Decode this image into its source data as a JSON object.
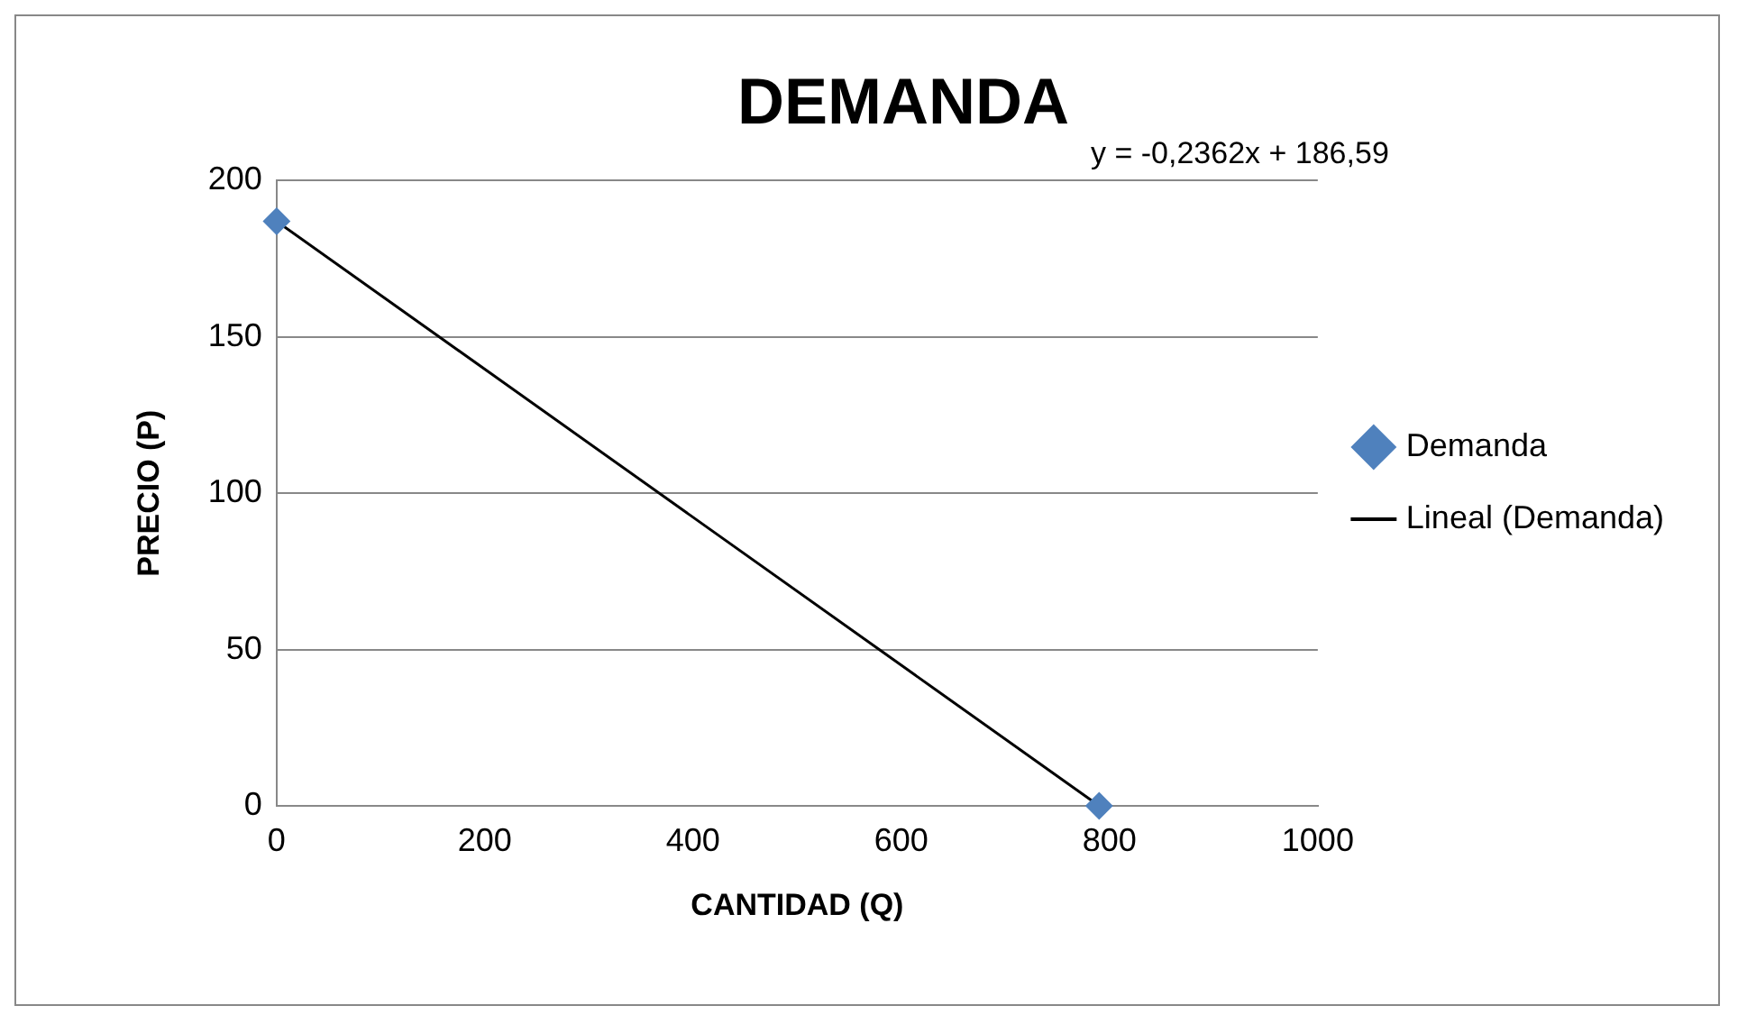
{
  "chart_data": {
    "type": "scatter",
    "title": "DEMANDA",
    "xlabel": "CANTIDAD (Q)",
    "ylabel": "PRECIO (P)",
    "annotations": [
      "y = -0,2362x + 186,59"
    ],
    "xlim": [
      0,
      1000
    ],
    "xticks": [
      0,
      200,
      400,
      600,
      800,
      1000
    ],
    "ylim": [
      0,
      200
    ],
    "yticks": [
      0,
      50,
      100,
      150,
      200
    ],
    "grid": "y",
    "legend": "right",
    "x": [
      0,
      790
    ],
    "series": [
      {
        "name": "Demanda",
        "color": "#4f81bd",
        "values": [
          187,
          0
        ],
        "marker": "diamond"
      },
      {
        "name": "Lineal (Demanda)",
        "type": "line",
        "color": "#000000",
        "values": [
          187,
          0
        ],
        "marker": "none",
        "line_style": "solid"
      }
    ]
  }
}
